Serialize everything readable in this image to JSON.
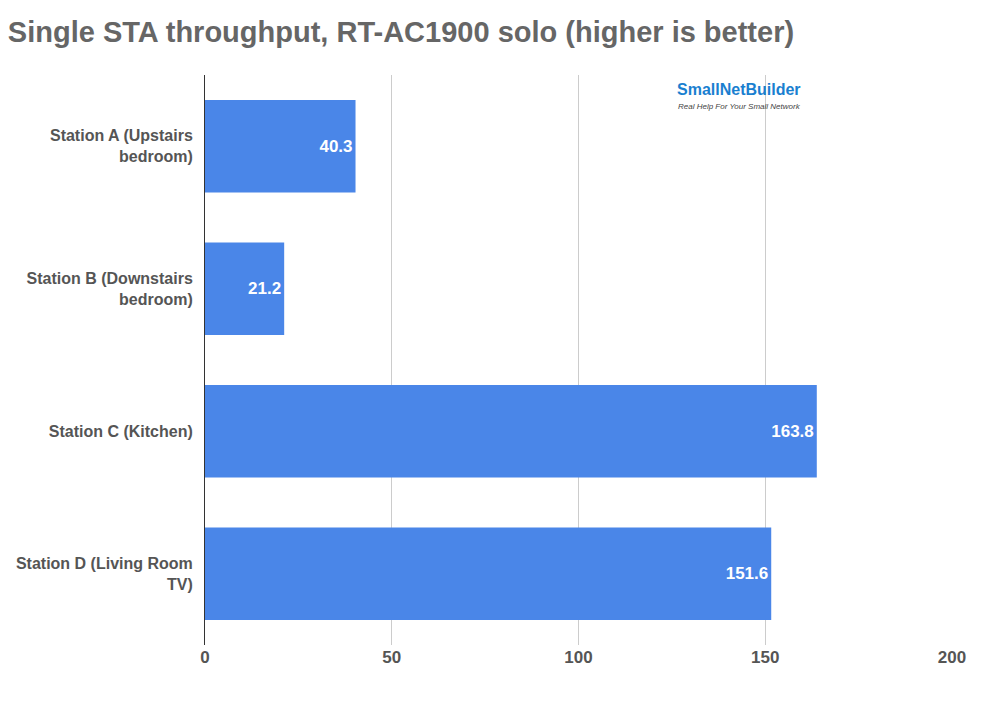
{
  "chart_data": {
    "type": "bar",
    "title": "Single STA throughput, RT-AC1900 solo (higher is better)",
    "orientation": "horizontal",
    "categories": [
      "Station A (Upstairs bedroom)",
      "Station B (Downstairs bedroom)",
      "Station C (Kitchen)",
      "Station D (Living Room TV)"
    ],
    "values": [
      40.3,
      21.2,
      163.8,
      151.6
    ],
    "color": "#4a86e8",
    "xlim": [
      0,
      200
    ],
    "xticks": [
      0,
      50,
      100,
      150,
      200
    ],
    "grid": true,
    "data_labels": true,
    "annotations": [
      "SmallNetBuilder",
      "Real Help For Your Small Network"
    ]
  }
}
